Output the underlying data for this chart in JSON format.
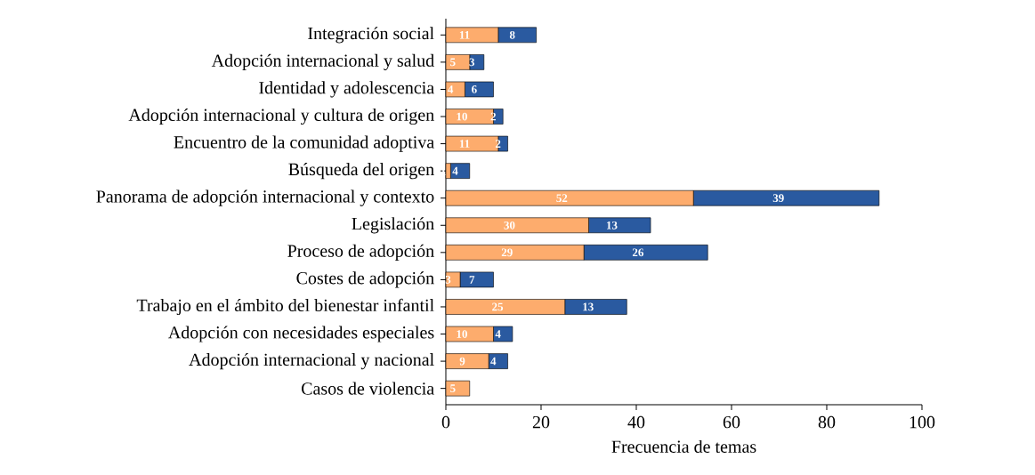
{
  "chart_data": {
    "type": "bar",
    "orientation": "horizontal",
    "stacked": true,
    "data_labels": true,
    "xlabel": "Frecuencia de temas",
    "categories": [
      "Integración social",
      "Adopción internacional y salud",
      "Identidad y adolescencia",
      "Adopción internacional y cultura de origen",
      "Encuentro de la comunidad adoptiva",
      "Búsqueda del origen",
      "Panorama de adopción internacional y contexto",
      "Legislación",
      "Proceso de adopción",
      "Costes de adopción",
      "Trabajo en el ámbito del bienestar infantil",
      "Adopción con necesidades especiales",
      "Adopción internacional y nacional",
      "Casos de violencia"
    ],
    "series": [
      {
        "color": "#fdac6d",
        "values": [
          11,
          5,
          4,
          10,
          11,
          1,
          52,
          30,
          29,
          3,
          25,
          10,
          9,
          5
        ]
      },
      {
        "color": "#2a5aa0",
        "values": [
          8,
          3,
          6,
          2,
          2,
          4,
          39,
          13,
          26,
          7,
          13,
          4,
          4,
          null
        ]
      }
    ],
    "xlim": [
      0,
      100
    ],
    "xticks": [
      0,
      20,
      40,
      60,
      80,
      100
    ]
  }
}
